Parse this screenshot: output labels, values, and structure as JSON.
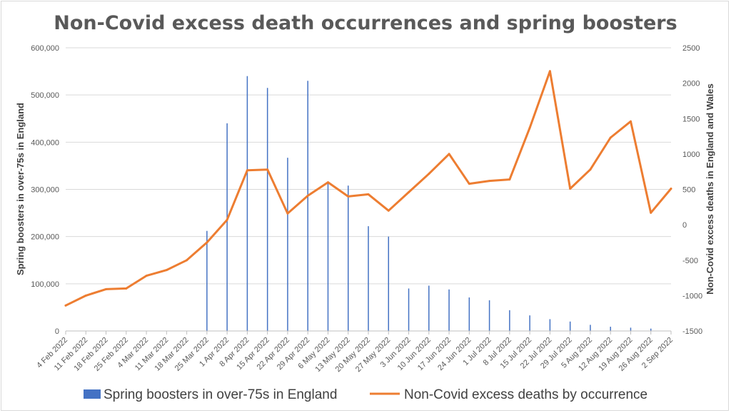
{
  "chart_data": {
    "type": "bar",
    "title": "Non-Covid excess death occurrences and spring boosters",
    "ylabel": "Spring boosters in over-75s in England",
    "y2label": "Non-Covid excess deaths in England and Wales",
    "ylim": [
      0,
      600000
    ],
    "y2lim": [
      -1500,
      2500
    ],
    "yticks": [
      "0",
      "100,000",
      "200,000",
      "300,000",
      "400,000",
      "500,000",
      "600,000"
    ],
    "y2ticks": [
      "-1500",
      "-1000",
      "-500",
      "0",
      "500",
      "1000",
      "1500",
      "2000",
      "2500"
    ],
    "grid": true,
    "legend_position": "bottom",
    "categories": [
      "4 Feb 2022",
      "11 Feb 2022",
      "18 Feb 2022",
      "25 Feb 2022",
      "4 Mar 2022",
      "11 Mar 2022",
      "18 Mar 2022",
      "25 Mar 2022",
      "1 Apr 2022",
      "8 Apr 2022",
      "15 Apr 2022",
      "22 Apr 2022",
      "29 Apr 2022",
      "6 May 2022",
      "13 May 2022",
      "20 May 2022",
      "27 May 2022",
      "3 Jun 2022",
      "10 Jun 2022",
      "17 Jun 2022",
      "24 Jun 2022",
      "1 Jul 2022",
      "8 Jul 2022",
      "15 Jul 2022",
      "22 Jul 2022",
      "29 Jul 2022",
      "5 Aug 2022",
      "12 Aug 2022",
      "19 Aug 2022",
      "26 Aug 2022",
      "2 Sep 2022"
    ],
    "series": [
      {
        "name": "Spring boosters in over-75s in England",
        "type": "bar",
        "axis": "left",
        "color": "#4472c4",
        "values": [
          0,
          0,
          0,
          0,
          0,
          0,
          0,
          212000,
          440000,
          540000,
          515000,
          367000,
          530000,
          315000,
          308000,
          222000,
          200000,
          90000,
          96000,
          88000,
          71000,
          65000,
          44000,
          33000,
          25000,
          20000,
          13000,
          9000,
          7000,
          5000,
          0
        ]
      },
      {
        "name": "Non-Covid excess deaths by occurrence",
        "type": "line",
        "axis": "right",
        "color": "#ed7d31",
        "values": [
          -1140,
          -1000,
          -910,
          -900,
          -720,
          -640,
          -500,
          -250,
          70,
          770,
          780,
          160,
          410,
          600,
          400,
          430,
          200,
          460,
          720,
          1000,
          580,
          620,
          640,
          1370,
          2170,
          510,
          780,
          1230,
          1460,
          170,
          510
        ]
      }
    ]
  }
}
